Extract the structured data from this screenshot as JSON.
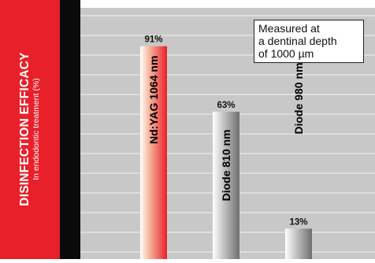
{
  "panel": {
    "title": "DISINFECTION EFFICACY",
    "subtitle": "In endodontic treatment (%)"
  },
  "note": {
    "lines": [
      "Measured at",
      "a dentinal depth",
      "of 1000 µm"
    ]
  },
  "chart_data": {
    "type": "bar",
    "title": "DISINFECTION EFFICACY",
    "ylabel": "In endodontic treatment (%)",
    "xlabel": "",
    "categories": [
      "Nd:YAG 1064 nm",
      "Diode 810 nm",
      "Diode 980 nm"
    ],
    "values": [
      91,
      63,
      13
    ],
    "data_labels": [
      "91%",
      "63%",
      "13%"
    ],
    "ylim": [
      0,
      100
    ],
    "grid": true,
    "colors": {
      "first_bar": "#e8202a",
      "other_bars": "#8c8c8c",
      "plot_background": "#c8c8c8"
    }
  }
}
